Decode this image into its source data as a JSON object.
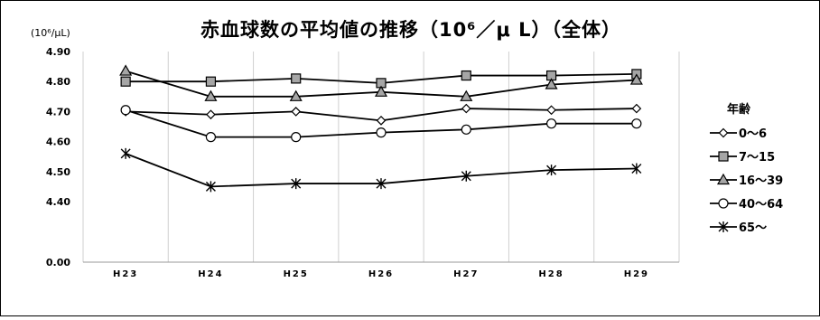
{
  "chart_data": {
    "type": "line",
    "title": "赤血球数の平均値の推移（10⁶／μ L）（全体）",
    "unit_label": "(10⁶/μL)",
    "categories": [
      "H23",
      "H24",
      "H25",
      "H26",
      "H27",
      "H28",
      "H29"
    ],
    "y_ticks": [
      "4.90",
      "4.80",
      "4.70",
      "4.60",
      "4.50",
      "4.40",
      "0.00"
    ],
    "y_break": {
      "from": 0.0,
      "to": 4.4
    },
    "ylim": [
      4.4,
      4.9
    ],
    "grid": "vertical",
    "legend_title": "年齢",
    "legend_position": "right",
    "series": [
      {
        "name": "0〜6",
        "marker": "diamond",
        "values": [
          4.7,
          4.69,
          4.7,
          4.67,
          4.71,
          4.705,
          4.71
        ]
      },
      {
        "name": "7〜15",
        "marker": "square",
        "values": [
          4.8,
          4.8,
          4.81,
          4.795,
          4.82,
          4.82,
          4.825
        ]
      },
      {
        "name": "16〜39",
        "marker": "triangle",
        "values": [
          4.835,
          4.75,
          4.75,
          4.765,
          4.75,
          4.79,
          4.805
        ]
      },
      {
        "name": "40〜64",
        "marker": "circle",
        "values": [
          4.705,
          4.615,
          4.615,
          4.63,
          4.64,
          4.66,
          4.66
        ]
      },
      {
        "name": "65〜",
        "marker": "star",
        "values": [
          4.56,
          4.45,
          4.46,
          4.46,
          4.485,
          4.505,
          4.51
        ]
      }
    ]
  }
}
